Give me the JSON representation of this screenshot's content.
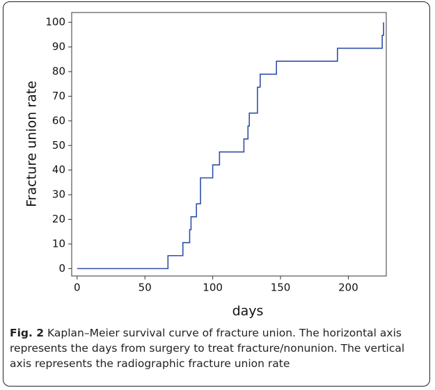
{
  "chart_data": {
    "type": "line",
    "step": "post",
    "color": "#2f4fa8",
    "xlabel": "days",
    "ylabel": "Fracture union rate",
    "x": [
      0,
      67,
      78,
      83,
      84,
      88,
      91,
      100,
      105,
      123,
      126,
      127,
      133,
      135,
      147,
      192,
      225,
      226
    ],
    "values": [
      0,
      5.26,
      10.53,
      15.79,
      21.05,
      26.32,
      36.84,
      42.11,
      47.37,
      52.63,
      57.89,
      63.16,
      73.68,
      78.95,
      84.21,
      89.47,
      94.74,
      100
    ],
    "xlim": [
      -4,
      228
    ],
    "xticks": [
      0,
      50,
      100,
      150,
      200
    ],
    "ylim": [
      -3,
      104
    ],
    "yticks": [
      0,
      10,
      20,
      30,
      40,
      50,
      60,
      70,
      80,
      90,
      100
    ]
  },
  "caption": {
    "label": "Fig. 2",
    "text": "Kaplan–Meier survival curve of fracture union. The horizontal axis represents the days from surgery to treat fracture/nonunion. The vertical axis represents the radiographic fracture union rate"
  }
}
